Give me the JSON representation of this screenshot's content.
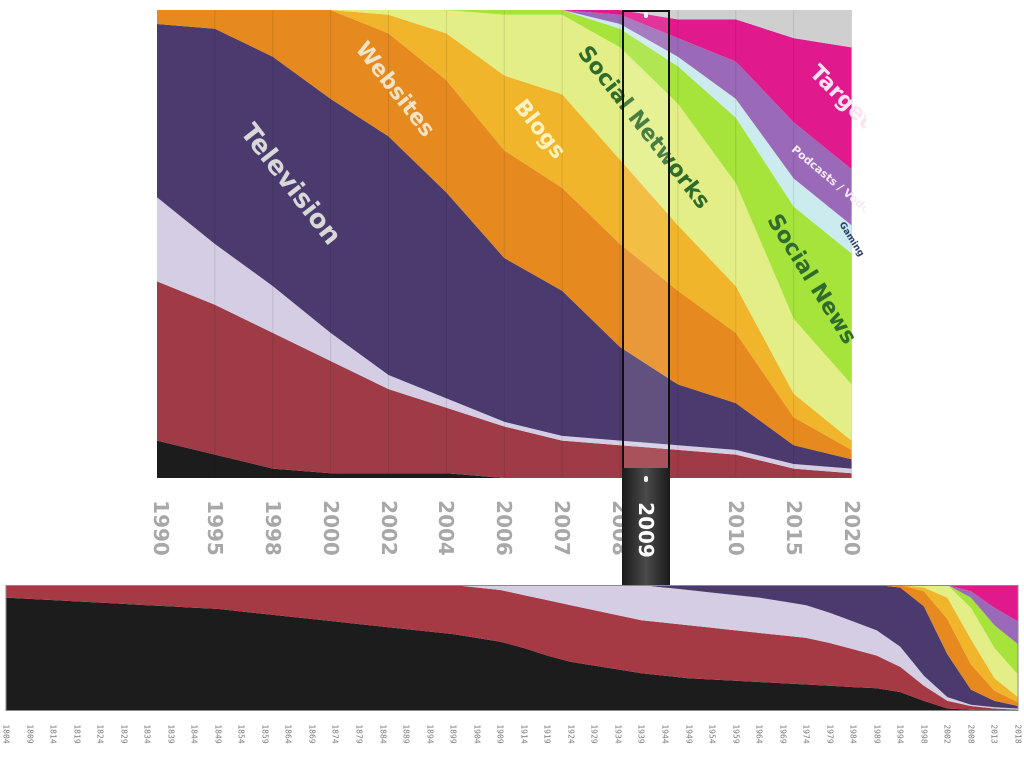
{
  "chart_data": [
    {
      "type": "area",
      "stacked": true,
      "normalized_share": true,
      "categories": [
        "1990",
        "1995",
        "1998",
        "2000",
        "2002",
        "2004",
        "2006",
        "2007",
        "2008",
        "2009",
        "2010",
        "2015",
        "2020"
      ],
      "series": [
        {
          "name": "",
          "color": "#1c1c1c",
          "values": [
            0.08,
            0.05,
            0.02,
            0.01,
            0.01,
            0.01,
            0.0,
            0.0,
            0.0,
            0.0,
            0.0,
            0.0,
            0.0
          ]
        },
        {
          "name": "",
          "color": "#9e3b46",
          "values": [
            0.34,
            0.32,
            0.29,
            0.24,
            0.18,
            0.14,
            0.11,
            0.08,
            0.07,
            0.06,
            0.05,
            0.02,
            0.01
          ]
        },
        {
          "name": "",
          "color": "#d4cde4",
          "values": [
            0.18,
            0.13,
            0.1,
            0.06,
            0.03,
            0.02,
            0.01,
            0.01,
            0.01,
            0.01,
            0.01,
            0.01,
            0.01
          ]
        },
        {
          "name": "Television",
          "color": "#4a3a6e",
          "values": [
            0.37,
            0.46,
            0.49,
            0.5,
            0.51,
            0.44,
            0.35,
            0.31,
            0.2,
            0.13,
            0.1,
            0.04,
            0.02
          ]
        },
        {
          "name": "Websites",
          "color": "#e68a1f",
          "values": [
            0.03,
            0.04,
            0.1,
            0.19,
            0.22,
            0.24,
            0.23,
            0.22,
            0.22,
            0.2,
            0.15,
            0.06,
            0.02
          ]
        },
        {
          "name": "Blogs",
          "color": "#f1b52b",
          "values": [
            0.0,
            0.0,
            0.0,
            0.0,
            0.04,
            0.1,
            0.16,
            0.2,
            0.18,
            0.14,
            0.1,
            0.05,
            0.02
          ]
        },
        {
          "name": "Social Networks",
          "color": "#e3ee86",
          "values": [
            0.0,
            0.0,
            0.0,
            0.0,
            0.01,
            0.05,
            0.13,
            0.17,
            0.24,
            0.26,
            0.22,
            0.16,
            0.12
          ]
        },
        {
          "name": "Social News",
          "color": "#a6e33b",
          "values": [
            0.0,
            0.0,
            0.0,
            0.0,
            0.0,
            0.0,
            0.01,
            0.01,
            0.04,
            0.08,
            0.14,
            0.24,
            0.28
          ]
        },
        {
          "name": "Gaming",
          "color": "#ccebee",
          "values": [
            0.0,
            0.0,
            0.0,
            0.0,
            0.0,
            0.0,
            0.0,
            0.0,
            0.01,
            0.02,
            0.04,
            0.06,
            0.06
          ]
        },
        {
          "name": "Podcasts / Vodcasts",
          "color": "#9a6ab8",
          "values": [
            0.0,
            0.0,
            0.0,
            0.0,
            0.0,
            0.0,
            0.0,
            0.0,
            0.02,
            0.04,
            0.08,
            0.12,
            0.12
          ]
        },
        {
          "name": "Targeted",
          "color": "#e0198c",
          "values": [
            0.0,
            0.0,
            0.0,
            0.0,
            0.0,
            0.0,
            0.0,
            0.0,
            0.01,
            0.04,
            0.09,
            0.18,
            0.26
          ]
        },
        {
          "name": "",
          "color": "#cfcfcf",
          "values": [
            0.0,
            0.0,
            0.0,
            0.0,
            0.0,
            0.0,
            0.0,
            0.0,
            0.0,
            0.02,
            0.02,
            0.06,
            0.08
          ]
        }
      ],
      "ylim": [
        0,
        1
      ],
      "grid": "vertical",
      "legend": "none",
      "selected_year": "2009"
    },
    {
      "type": "area",
      "stacked": true,
      "normalized_share": true,
      "categories": [
        "1804",
        "1809",
        "1814",
        "1819",
        "1824",
        "1829",
        "1834",
        "1839",
        "1844",
        "1849",
        "1854",
        "1859",
        "1864",
        "1869",
        "1874",
        "1879",
        "1884",
        "1889",
        "1894",
        "1899",
        "1904",
        "1909",
        "1914",
        "1919",
        "1924",
        "1929",
        "1934",
        "1939",
        "1944",
        "1949",
        "1954",
        "1959",
        "1964",
        "1969",
        "1974",
        "1979",
        "1984",
        "1989",
        "1994",
        "1998",
        "2002",
        "2008",
        "2013",
        "2018"
      ],
      "series": [
        {
          "name": "",
          "color": "#1c1c1c",
          "values": [
            0.9,
            0.89,
            0.88,
            0.87,
            0.86,
            0.85,
            0.84,
            0.83,
            0.82,
            0.81,
            0.79,
            0.77,
            0.75,
            0.73,
            0.71,
            0.69,
            0.67,
            0.65,
            0.63,
            0.61,
            0.58,
            0.55,
            0.5,
            0.44,
            0.39,
            0.36,
            0.33,
            0.3,
            0.28,
            0.26,
            0.25,
            0.24,
            0.23,
            0.22,
            0.21,
            0.2,
            0.19,
            0.18,
            0.15,
            0.08,
            0.02,
            0.01,
            0.0,
            0.0
          ]
        },
        {
          "name": "",
          "color": "#a63a44",
          "values": [
            0.1,
            0.11,
            0.12,
            0.13,
            0.14,
            0.15,
            0.16,
            0.17,
            0.18,
            0.19,
            0.21,
            0.23,
            0.25,
            0.27,
            0.29,
            0.31,
            0.33,
            0.35,
            0.37,
            0.39,
            0.4,
            0.41,
            0.42,
            0.44,
            0.45,
            0.44,
            0.43,
            0.42,
            0.42,
            0.42,
            0.41,
            0.4,
            0.39,
            0.38,
            0.37,
            0.34,
            0.3,
            0.26,
            0.2,
            0.12,
            0.06,
            0.03,
            0.02,
            0.01
          ]
        },
        {
          "name": "",
          "color": "#d4cde4",
          "values": [
            0.0,
            0.0,
            0.0,
            0.0,
            0.0,
            0.0,
            0.0,
            0.0,
            0.0,
            0.0,
            0.0,
            0.0,
            0.0,
            0.0,
            0.0,
            0.0,
            0.0,
            0.0,
            0.0,
            0.0,
            0.02,
            0.04,
            0.08,
            0.12,
            0.16,
            0.2,
            0.24,
            0.28,
            0.28,
            0.28,
            0.28,
            0.28,
            0.28,
            0.27,
            0.26,
            0.24,
            0.22,
            0.2,
            0.16,
            0.08,
            0.03,
            0.01,
            0.01,
            0.01
          ]
        },
        {
          "name": "",
          "color": "#4a3a6e",
          "values": [
            0.0,
            0.0,
            0.0,
            0.0,
            0.0,
            0.0,
            0.0,
            0.0,
            0.0,
            0.0,
            0.0,
            0.0,
            0.0,
            0.0,
            0.0,
            0.0,
            0.0,
            0.0,
            0.0,
            0.0,
            0.0,
            0.0,
            0.0,
            0.0,
            0.0,
            0.0,
            0.0,
            0.0,
            0.02,
            0.04,
            0.06,
            0.08,
            0.1,
            0.13,
            0.16,
            0.22,
            0.29,
            0.36,
            0.47,
            0.55,
            0.34,
            0.12,
            0.05,
            0.02
          ]
        },
        {
          "name": "",
          "color": "#e68a1f",
          "values": [
            0.0,
            0.0,
            0.0,
            0.0,
            0.0,
            0.0,
            0.0,
            0.0,
            0.0,
            0.0,
            0.0,
            0.0,
            0.0,
            0.0,
            0.0,
            0.0,
            0.0,
            0.0,
            0.0,
            0.0,
            0.0,
            0.0,
            0.0,
            0.0,
            0.0,
            0.0,
            0.0,
            0.0,
            0.0,
            0.0,
            0.0,
            0.0,
            0.0,
            0.0,
            0.0,
            0.0,
            0.0,
            0.0,
            0.02,
            0.12,
            0.28,
            0.2,
            0.08,
            0.03
          ]
        },
        {
          "name": "",
          "color": "#f1b52b",
          "values": [
            0.0,
            0.0,
            0.0,
            0.0,
            0.0,
            0.0,
            0.0,
            0.0,
            0.0,
            0.0,
            0.0,
            0.0,
            0.0,
            0.0,
            0.0,
            0.0,
            0.0,
            0.0,
            0.0,
            0.0,
            0.0,
            0.0,
            0.0,
            0.0,
            0.0,
            0.0,
            0.0,
            0.0,
            0.0,
            0.0,
            0.0,
            0.0,
            0.0,
            0.0,
            0.0,
            0.0,
            0.0,
            0.0,
            0.0,
            0.03,
            0.17,
            0.2,
            0.1,
            0.04
          ]
        },
        {
          "name": "",
          "color": "#e3ee86",
          "values": [
            0.0,
            0.0,
            0.0,
            0.0,
            0.0,
            0.0,
            0.0,
            0.0,
            0.0,
            0.0,
            0.0,
            0.0,
            0.0,
            0.0,
            0.0,
            0.0,
            0.0,
            0.0,
            0.0,
            0.0,
            0.0,
            0.0,
            0.0,
            0.0,
            0.0,
            0.0,
            0.0,
            0.0,
            0.0,
            0.0,
            0.0,
            0.0,
            0.0,
            0.0,
            0.0,
            0.0,
            0.0,
            0.0,
            0.0,
            0.02,
            0.1,
            0.25,
            0.24,
            0.18
          ]
        },
        {
          "name": "",
          "color": "#a6e33b",
          "values": [
            0.0,
            0.0,
            0.0,
            0.0,
            0.0,
            0.0,
            0.0,
            0.0,
            0.0,
            0.0,
            0.0,
            0.0,
            0.0,
            0.0,
            0.0,
            0.0,
            0.0,
            0.0,
            0.0,
            0.0,
            0.0,
            0.0,
            0.0,
            0.0,
            0.0,
            0.0,
            0.0,
            0.0,
            0.0,
            0.0,
            0.0,
            0.0,
            0.0,
            0.0,
            0.0,
            0.0,
            0.0,
            0.0,
            0.0,
            0.0,
            0.0,
            0.08,
            0.18,
            0.24
          ]
        },
        {
          "name": "",
          "color": "#9a6ab8",
          "values": [
            0.0,
            0.0,
            0.0,
            0.0,
            0.0,
            0.0,
            0.0,
            0.0,
            0.0,
            0.0,
            0.0,
            0.0,
            0.0,
            0.0,
            0.0,
            0.0,
            0.0,
            0.0,
            0.0,
            0.0,
            0.0,
            0.0,
            0.0,
            0.0,
            0.0,
            0.0,
            0.0,
            0.0,
            0.0,
            0.0,
            0.0,
            0.0,
            0.0,
            0.0,
            0.0,
            0.0,
            0.0,
            0.0,
            0.0,
            0.0,
            0.0,
            0.05,
            0.14,
            0.18
          ]
        },
        {
          "name": "",
          "color": "#e0198c",
          "values": [
            0.0,
            0.0,
            0.0,
            0.0,
            0.0,
            0.0,
            0.0,
            0.0,
            0.0,
            0.0,
            0.0,
            0.0,
            0.0,
            0.0,
            0.0,
            0.0,
            0.0,
            0.0,
            0.0,
            0.0,
            0.0,
            0.0,
            0.0,
            0.0,
            0.0,
            0.0,
            0.0,
            0.0,
            0.0,
            0.0,
            0.0,
            0.0,
            0.0,
            0.0,
            0.0,
            0.0,
            0.0,
            0.0,
            0.0,
            0.0,
            0.0,
            0.05,
            0.18,
            0.29
          ]
        }
      ],
      "ylim": [
        0,
        1
      ],
      "legend": "none"
    }
  ]
}
